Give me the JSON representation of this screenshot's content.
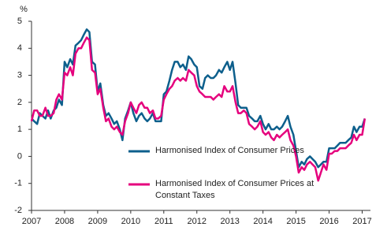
{
  "chart_data": {
    "type": "line",
    "y_label": "%",
    "x": [
      2007,
      2007.08,
      2007.17,
      2007.25,
      2007.33,
      2007.42,
      2007.5,
      2007.58,
      2007.67,
      2007.75,
      2007.83,
      2007.92,
      2008,
      2008.08,
      2008.17,
      2008.25,
      2008.33,
      2008.42,
      2008.5,
      2008.58,
      2008.67,
      2008.75,
      2008.83,
      2008.92,
      2009,
      2009.08,
      2009.17,
      2009.25,
      2009.33,
      2009.42,
      2009.5,
      2009.58,
      2009.67,
      2009.75,
      2009.83,
      2009.92,
      2010,
      2010.08,
      2010.17,
      2010.25,
      2010.33,
      2010.42,
      2010.5,
      2010.58,
      2010.67,
      2010.75,
      2010.83,
      2010.92,
      2011,
      2011.08,
      2011.17,
      2011.25,
      2011.33,
      2011.42,
      2011.5,
      2011.58,
      2011.67,
      2011.75,
      2011.83,
      2011.92,
      2012,
      2012.08,
      2012.17,
      2012.25,
      2012.33,
      2012.42,
      2012.5,
      2012.58,
      2012.67,
      2012.75,
      2012.83,
      2012.92,
      2013,
      2013.08,
      2013.17,
      2013.25,
      2013.33,
      2013.42,
      2013.5,
      2013.58,
      2013.67,
      2013.75,
      2013.83,
      2013.92,
      2014,
      2014.08,
      2014.17,
      2014.25,
      2014.33,
      2014.42,
      2014.5,
      2014.58,
      2014.67,
      2014.75,
      2014.83,
      2014.92,
      2015,
      2015.08,
      2015.17,
      2015.25,
      2015.33,
      2015.42,
      2015.5,
      2015.58,
      2015.67,
      2015.75,
      2015.83,
      2015.92,
      2016,
      2016.08,
      2016.17,
      2016.25,
      2016.33,
      2016.42,
      2016.5,
      2016.58,
      2016.67,
      2016.75,
      2016.83,
      2016.92,
      2017,
      2017.08
    ],
    "series": [
      {
        "name": "Harmonised Index of Consumer Prices",
        "color": "#0d5f8c",
        "values": [
          1.4,
          1.3,
          1.2,
          1.6,
          1.5,
          1.4,
          1.7,
          1.4,
          1.7,
          1.8,
          2.1,
          1.9,
          3.5,
          3.3,
          3.6,
          3.4,
          4.1,
          4.2,
          4.3,
          4.5,
          4.7,
          4.6,
          3.5,
          3.4,
          2.4,
          2.7,
          1.9,
          1.5,
          1.6,
          1.4,
          1.2,
          1.3,
          1.0,
          0.6,
          1.4,
          1.7,
          2.0,
          1.6,
          1.3,
          1.5,
          1.6,
          1.4,
          1.3,
          1.4,
          1.6,
          1.3,
          1.3,
          1.3,
          2.3,
          2.4,
          2.8,
          3.2,
          3.5,
          3.5,
          3.3,
          3.4,
          3.2,
          3.7,
          3.6,
          3.4,
          3.3,
          2.6,
          2.5,
          2.9,
          3.0,
          2.9,
          2.9,
          3.0,
          3.2,
          3.1,
          3.3,
          3.5,
          3.2,
          3.5,
          2.7,
          1.9,
          1.8,
          1.8,
          1.8,
          1.5,
          1.4,
          1.3,
          1.3,
          1.5,
          1.2,
          1.0,
          1.2,
          1.0,
          1.0,
          1.1,
          1.0,
          1.1,
          1.3,
          1.5,
          1.1,
          0.8,
          0.2,
          -0.4,
          -0.2,
          -0.3,
          -0.1,
          0.0,
          -0.1,
          -0.2,
          -0.4,
          -0.3,
          -0.2,
          -0.2,
          0.3,
          0.3,
          0.3,
          0.4,
          0.5,
          0.5,
          0.5,
          0.6,
          0.7,
          1.1,
          0.9,
          1.1,
          1.1,
          1.4
        ]
      },
      {
        "name": "Harmonised Index of Consumer Prices at Constant Taxes",
        "color": "#e5007d",
        "values": [
          1.3,
          1.7,
          1.7,
          1.5,
          1.5,
          1.8,
          1.5,
          1.5,
          1.6,
          2.1,
          2.3,
          2.1,
          3.1,
          3.0,
          3.3,
          3.0,
          3.8,
          4.0,
          4.0,
          4.2,
          4.4,
          4.3,
          3.2,
          3.1,
          2.3,
          2.5,
          1.8,
          1.3,
          1.4,
          1.1,
          1.0,
          1.1,
          0.9,
          0.8,
          1.3,
          1.6,
          2.0,
          1.8,
          1.6,
          1.9,
          2.0,
          1.8,
          1.8,
          1.6,
          1.7,
          1.4,
          1.4,
          1.5,
          2.1,
          2.3,
          2.5,
          2.6,
          2.8,
          2.9,
          2.8,
          2.9,
          2.8,
          3.2,
          3.1,
          3.0,
          2.6,
          2.4,
          2.3,
          2.2,
          2.2,
          2.2,
          2.1,
          2.2,
          2.3,
          2.2,
          2.6,
          2.4,
          2.4,
          2.6,
          2.0,
          1.6,
          1.6,
          1.7,
          1.6,
          1.2,
          1.1,
          1.0,
          1.1,
          1.3,
          0.9,
          0.8,
          0.9,
          0.7,
          0.6,
          0.8,
          0.7,
          0.8,
          0.9,
          1.0,
          0.6,
          0.4,
          0.0,
          -0.6,
          -0.4,
          -0.5,
          -0.3,
          -0.2,
          -0.3,
          -0.4,
          -0.9,
          -0.6,
          -0.3,
          -0.5,
          0.1,
          0.1,
          0.2,
          0.2,
          0.3,
          0.3,
          0.3,
          0.4,
          0.5,
          0.8,
          0.6,
          0.8,
          0.8,
          1.4
        ]
      }
    ],
    "xlim": [
      2007,
      2017.25
    ],
    "xticks": [
      2007,
      2008,
      2009,
      2010,
      2011,
      2012,
      2013,
      2014,
      2015,
      2016,
      2017
    ],
    "ylim": [
      -2,
      5
    ],
    "yticks": [
      -2,
      -1,
      0,
      1,
      2,
      3,
      4,
      5
    ],
    "grid": false
  }
}
